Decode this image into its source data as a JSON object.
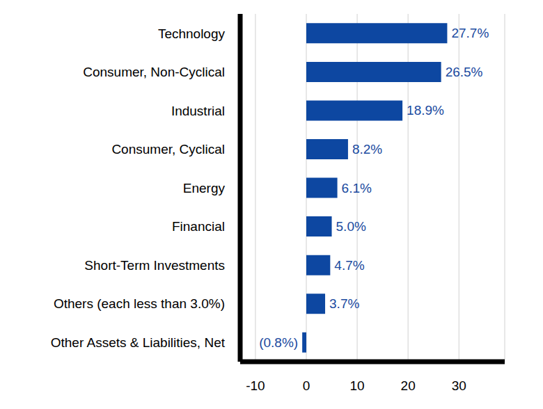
{
  "chart_data": {
    "type": "bar",
    "orientation": "horizontal",
    "categories": [
      "Technology",
      "Consumer, Non-Cyclical",
      "Industrial",
      "Consumer, Cyclical",
      "Energy",
      "Financial",
      "Short-Term Investments",
      "Others (each less than 3.0%)",
      "Other Assets & Liabilities, Net"
    ],
    "values": [
      27.7,
      26.5,
      18.9,
      8.2,
      6.1,
      5.0,
      4.7,
      3.7,
      -0.8
    ],
    "value_labels": [
      "27.7%",
      "26.5%",
      "18.9%",
      "8.2%",
      "6.1%",
      "5.0%",
      "4.7%",
      "3.7%",
      "(0.8%)"
    ],
    "color": "#0d47a1",
    "xlim": [
      -13,
      39
    ],
    "xticks": [
      -10,
      0,
      10,
      20,
      30
    ],
    "grid": true,
    "data_labels": true
  }
}
